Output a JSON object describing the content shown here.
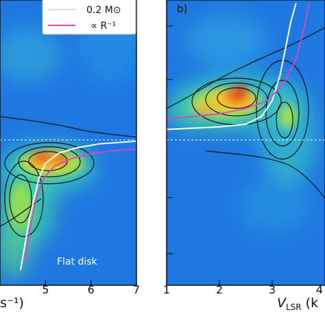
{
  "chart_data": [
    {
      "type": "heatmap",
      "panel": "a",
      "xlim": [
        4.0,
        7.0
      ],
      "xticks": [
        "5",
        "6",
        "7"
      ],
      "xlabel_partial": "s⁻¹)",
      "annotation": "Flat disk",
      "legend": {
        "placement": "top-right",
        "entries": [
          {
            "label": "0.2 M⊙",
            "color": "#ffffff"
          },
          {
            "label": "∝ R⁻¹",
            "color": "#e040c8"
          }
        ]
      },
      "reference_line_y": 0.0,
      "series": [
        {
          "name": "0.2 M⊙",
          "color": "#ffffff",
          "x": [
            4.45,
            4.55,
            4.65,
            4.75,
            4.85,
            5.0,
            5.3,
            5.7,
            6.2,
            7.0
          ],
          "y": [
            -1.0,
            -0.8,
            -0.6,
            -0.45,
            -0.3,
            -0.18,
            -0.1,
            -0.06,
            -0.03,
            -0.01
          ]
        },
        {
          "name": "∝ R⁻¹",
          "color": "#e040c8",
          "x": [
            4.55,
            4.65,
            4.8,
            4.95,
            5.2,
            5.6,
            6.1,
            6.6,
            7.0
          ],
          "y": [
            -0.95,
            -0.7,
            -0.45,
            -0.3,
            -0.2,
            -0.14,
            -0.1,
            -0.08,
            -0.07
          ]
        }
      ]
    },
    {
      "type": "heatmap",
      "panel": "b",
      "panel_label": "b)",
      "xlim": [
        1.0,
        4.0
      ],
      "xticks": [
        "1",
        "2",
        "3",
        "4"
      ],
      "xlabel_partial": "V",
      "xlabel_subscript": "LSR",
      "xlabel_tail": " (k",
      "reference_line_y": 0.0,
      "series": [
        {
          "name": "0.2 M⊙",
          "color": "#ffffff",
          "x": [
            1.0,
            1.5,
            2.0,
            2.5,
            2.8,
            3.0,
            3.15,
            3.25,
            3.35,
            3.45
          ],
          "y": [
            0.08,
            0.09,
            0.1,
            0.12,
            0.18,
            0.3,
            0.5,
            0.7,
            0.9,
            1.05
          ]
        },
        {
          "name": "∝ R⁻¹",
          "color": "#e040c8",
          "x": [
            1.0,
            1.5,
            2.0,
            2.5,
            2.9,
            3.2,
            3.45,
            3.6,
            3.7
          ],
          "y": [
            0.16,
            0.18,
            0.2,
            0.24,
            0.3,
            0.42,
            0.62,
            0.85,
            1.05
          ]
        }
      ]
    }
  ]
}
